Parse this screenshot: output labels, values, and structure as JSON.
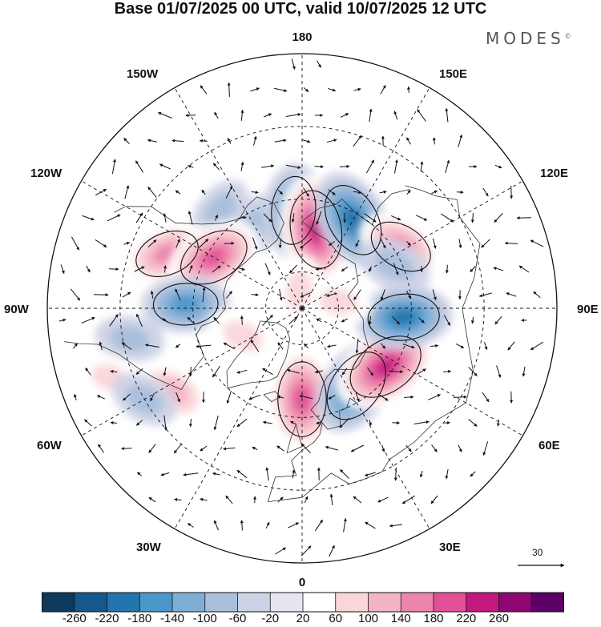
{
  "title": "Base 01/07/2025 00 UTC, valid 10/07/2025 12 UTC",
  "brand": "MODES",
  "brand_mark": "©",
  "longitude_labels": {
    "top": "180",
    "bottom": "0",
    "left": "90W",
    "right": "90E",
    "upper_left_outer": "120W",
    "upper_left_inner": "150W",
    "upper_right_inner": "150E",
    "upper_right_outer": "120E",
    "lower_left_outer": "60W",
    "lower_left_inner": "30W",
    "lower_right_inner": "30E",
    "lower_right_outer": "60E"
  },
  "reference_vector": {
    "value": "30"
  },
  "colorbar": {
    "colors": [
      "#0f3a5c",
      "#16578c",
      "#2474ad",
      "#4a97c9",
      "#7eaed6",
      "#a9bfdc",
      "#cdd3e6",
      "#e6e6f2",
      "#ffffff",
      "#fad6d9",
      "#f4b4c3",
      "#ec85ad",
      "#e25198",
      "#c3197f",
      "#8e0672",
      "#5c0066"
    ],
    "labels": [
      "-260",
      "-220",
      "-180",
      "-140",
      "-100",
      "-60",
      "-20",
      "20",
      "60",
      "100",
      "140",
      "180",
      "220",
      "260"
    ]
  },
  "anomaly_centers": [
    {
      "lon": -150,
      "lat": 64,
      "value": -60
    },
    {
      "lon": -140,
      "lat": 55,
      "value": -60
    },
    {
      "lon": -175,
      "lat": 63,
      "value": -160
    },
    {
      "lon": 170,
      "lat": 68,
      "value": 220
    },
    {
      "lon": 150,
      "lat": 62,
      "value": -200
    },
    {
      "lon": 122,
      "lat": 58,
      "value": 140
    },
    {
      "lon": -112,
      "lat": 50,
      "value": 140
    },
    {
      "lon": -120,
      "lat": 62,
      "value": 180
    },
    {
      "lon": -92,
      "lat": 58,
      "value": -140
    },
    {
      "lon": -57,
      "lat": 48,
      "value": 100
    },
    {
      "lon": 0,
      "lat": 65,
      "value": 200
    },
    {
      "lon": 35,
      "lat": 64,
      "value": -200
    },
    {
      "lon": 55,
      "lat": 62,
      "value": 220
    },
    {
      "lon": 85,
      "lat": 62,
      "value": -180
    },
    {
      "lon": 115,
      "lat": 62,
      "value": -80
    },
    {
      "lon": -65,
      "lat": 72,
      "value": 80
    },
    {
      "lon": -80,
      "lat": 42,
      "value": -60
    },
    {
      "lon": -70,
      "lat": 34,
      "value": 60
    },
    {
      "lon": 100,
      "lat": 80,
      "value": 60
    },
    {
      "lon": -170,
      "lat": 85,
      "value": 60
    },
    {
      "lon": -60,
      "lat": 40,
      "value": -60
    },
    {
      "lon": 60,
      "lat": 40,
      "value": 40
    }
  ]
}
